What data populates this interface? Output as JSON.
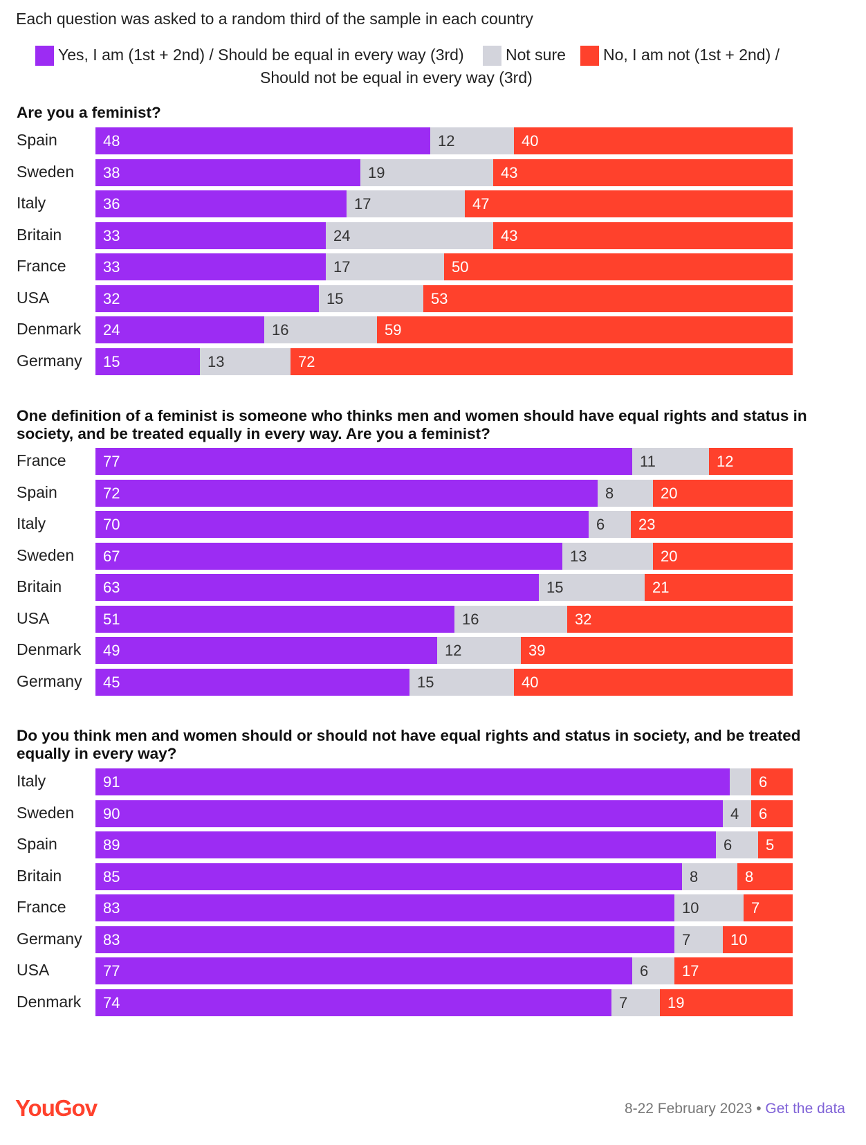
{
  "subtitle": "Each question was asked to a random third of the sample in each country",
  "legend": [
    {
      "label": "Yes, I am (1st + 2nd) / Should be equal in every way (3rd)",
      "color": "#9c2cf3"
    },
    {
      "label": "Not sure",
      "color": "#d3d4dc"
    },
    {
      "label_line1": "No, I am not (1st + 2nd) /",
      "label_line2": "Should not be equal in every way (3rd)",
      "color": "#ff412c"
    }
  ],
  "colors": {
    "yes": "#9c2cf3",
    "not_sure": "#d3d4dc",
    "no": "#ff412c",
    "yes_text": "#ffffff",
    "not_sure_text": "#333333",
    "no_text": "#ffffff"
  },
  "chart_data": [
    {
      "type": "bar",
      "stacked": true,
      "orientation": "horizontal",
      "title": "Are you a feminist?",
      "categories": [
        "Spain",
        "Sweden",
        "Italy",
        "Britain",
        "France",
        "USA",
        "Denmark",
        "Germany"
      ],
      "series": [
        {
          "name": "Yes, I am (1st + 2nd) / Should be equal in every way (3rd)",
          "values": [
            48,
            38,
            36,
            33,
            33,
            32,
            24,
            15
          ]
        },
        {
          "name": "Not sure",
          "values": [
            12,
            19,
            17,
            24,
            17,
            15,
            16,
            13
          ]
        },
        {
          "name": "No, I am not (1st + 2nd) / Should not be equal in every way (3rd)",
          "values": [
            40,
            43,
            47,
            43,
            50,
            53,
            59,
            72
          ]
        }
      ]
    },
    {
      "type": "bar",
      "stacked": true,
      "orientation": "horizontal",
      "title": "One definition of a feminist is someone who thinks men and women should have equal rights and status in society, and be treated equally in every way. Are you a feminist?",
      "categories": [
        "France",
        "Spain",
        "Italy",
        "Sweden",
        "Britain",
        "USA",
        "Denmark",
        "Germany"
      ],
      "series": [
        {
          "name": "Yes, I am (1st + 2nd) / Should be equal in every way (3rd)",
          "values": [
            77,
            72,
            70,
            67,
            63,
            51,
            49,
            45
          ]
        },
        {
          "name": "Not sure",
          "values": [
            11,
            8,
            6,
            13,
            15,
            16,
            12,
            15
          ]
        },
        {
          "name": "No, I am not (1st + 2nd) / Should not be equal in every way (3rd)",
          "values": [
            12,
            20,
            23,
            20,
            21,
            32,
            39,
            40
          ]
        }
      ]
    },
    {
      "type": "bar",
      "stacked": true,
      "orientation": "horizontal",
      "title": "Do you think men and women should or should not have equal rights and status in society, and be treated equally in every way?",
      "categories": [
        "Italy",
        "Sweden",
        "Spain",
        "Britain",
        "France",
        "Germany",
        "USA",
        "Denmark"
      ],
      "series": [
        {
          "name": "Yes, I am (1st + 2nd) / Should be equal in every way (3rd)",
          "values": [
            91,
            90,
            89,
            85,
            83,
            83,
            77,
            74
          ]
        },
        {
          "name": "Not sure",
          "values": [
            3,
            4,
            6,
            8,
            10,
            7,
            6,
            7
          ],
          "labels": [
            "",
            4,
            6,
            8,
            10,
            7,
            6,
            7
          ]
        },
        {
          "name": "No, I am not (1st + 2nd) / Should not be equal in every way (3rd)",
          "values": [
            6,
            6,
            5,
            8,
            7,
            10,
            17,
            19
          ]
        }
      ]
    }
  ],
  "footer": {
    "logo": "YouGov",
    "date": "8-22 February 2023 • ",
    "link": "Get the data"
  }
}
